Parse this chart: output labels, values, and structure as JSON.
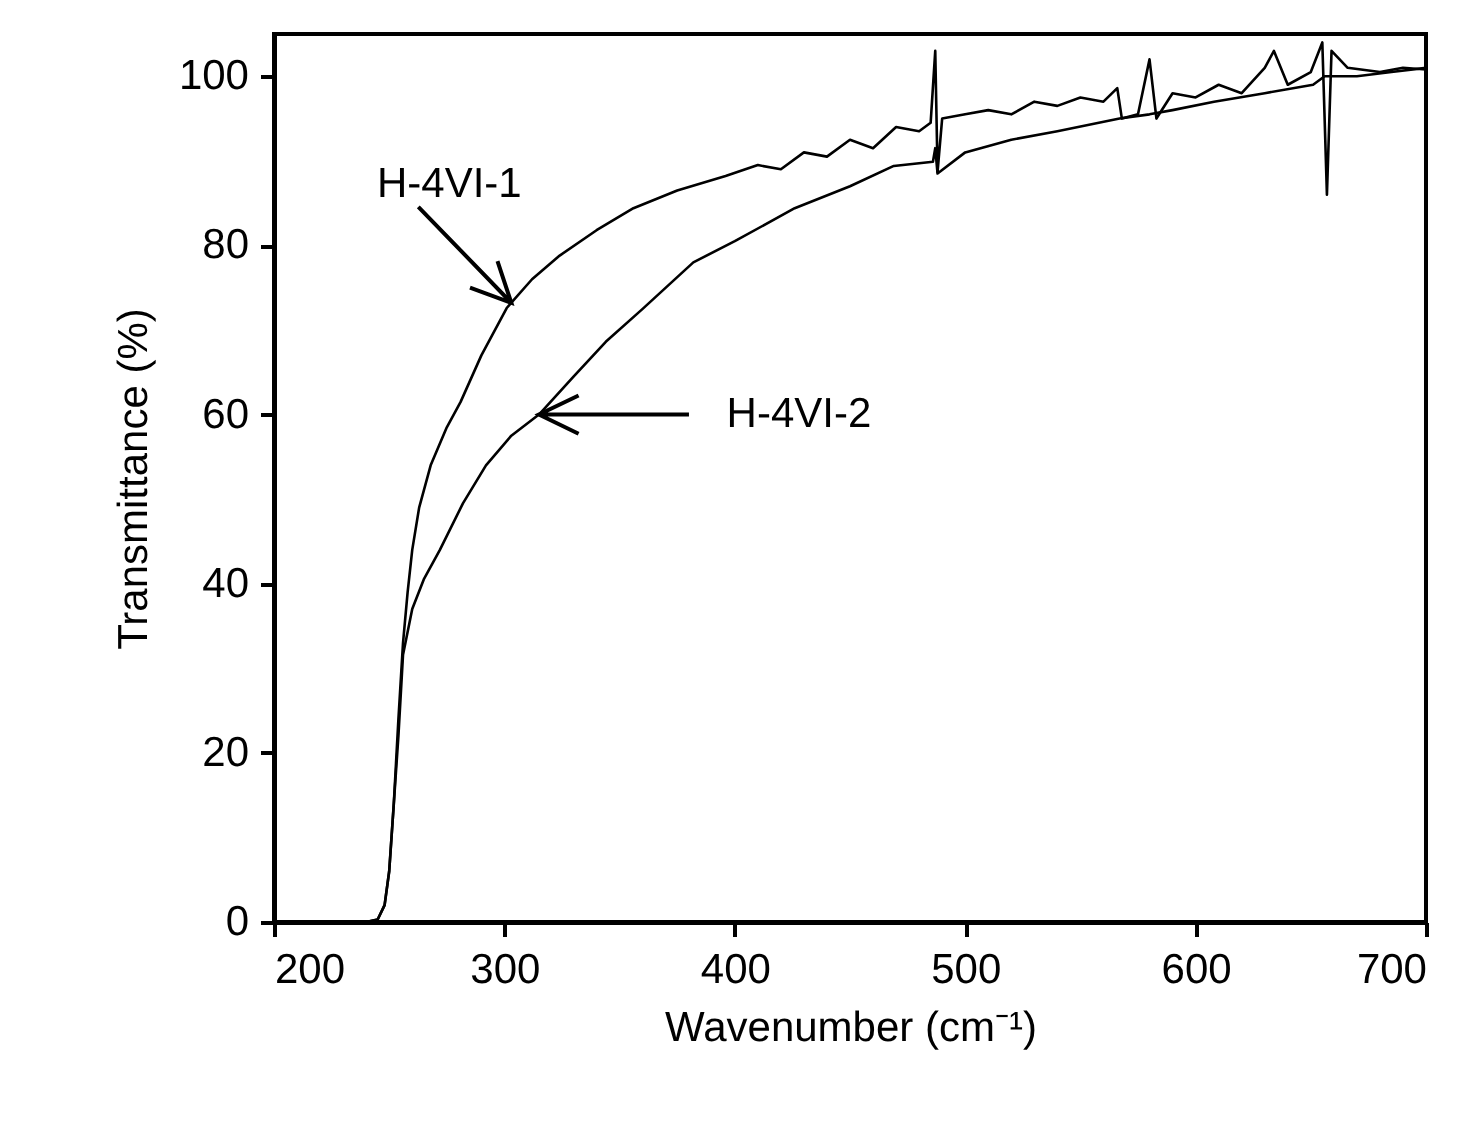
{
  "chart_data": {
    "type": "line",
    "xlabel": "Wavenumber (cm⁻¹)",
    "ylabel": "Transmittance (%)",
    "xlim": [
      200,
      700
    ],
    "xticks": [
      200,
      300,
      400,
      500,
      600,
      700
    ],
    "ylim": [
      0,
      105
    ],
    "yticks": [
      0,
      20,
      40,
      60,
      80,
      100
    ],
    "grid": false,
    "series": [
      {
        "name": "H-4VI-1",
        "color": "#000000",
        "x": [
          200,
          240,
          245,
          248,
          250,
          252,
          254,
          256,
          258,
          260,
          263,
          268,
          275,
          281,
          290,
          301,
          312,
          324,
          340,
          356,
          375,
          396,
          410,
          420,
          430,
          440,
          450,
          460,
          470,
          480,
          485,
          487,
          488,
          490,
          500,
          510,
          520,
          530,
          540,
          550,
          560,
          566,
          568,
          575,
          580,
          583,
          590,
          600,
          610,
          620,
          630,
          634,
          640,
          650,
          655,
          657,
          659,
          666,
          680,
          690,
          700
        ],
        "values": [
          0,
          0,
          0.3,
          2,
          6,
          14,
          24,
          33,
          39,
          44,
          49,
          54,
          58.5,
          61.5,
          67,
          72.6,
          76,
          78.8,
          81.8,
          84.4,
          86.5,
          88.2,
          89.5,
          89,
          91,
          90.5,
          92.5,
          91.5,
          94,
          93.5,
          94.5,
          103,
          88.7,
          95,
          95.5,
          96,
          95.5,
          97,
          96.5,
          97.5,
          97,
          98.6,
          95,
          95.5,
          102,
          95,
          98,
          97.5,
          99,
          98,
          101,
          103,
          99,
          100.5,
          104,
          86,
          103,
          101,
          100.5,
          101,
          100.8
        ]
      },
      {
        "name": "H-4VI-2",
        "color": "#000000",
        "x": [
          200,
          240,
          245,
          248,
          250,
          252,
          254,
          256,
          260,
          265,
          272,
          282,
          292,
          303,
          315,
          330,
          344,
          360,
          382,
          400,
          426,
          450,
          469,
          486,
          487,
          488,
          500,
          520,
          540,
          567,
          580,
          590,
          608,
          630,
          651,
          656,
          670,
          685,
          700
        ],
        "values": [
          0,
          0,
          0.3,
          2,
          6,
          14,
          22,
          31.6,
          37,
          40.5,
          44,
          49.5,
          54,
          57.5,
          60,
          64.5,
          68.6,
          72.5,
          78,
          80.5,
          84.4,
          87,
          89.4,
          89.9,
          91.5,
          88.5,
          91,
          92.5,
          93.5,
          95,
          95.5,
          96,
          97,
          98,
          99,
          100,
          100,
          100.5,
          101
        ]
      }
    ]
  }
}
